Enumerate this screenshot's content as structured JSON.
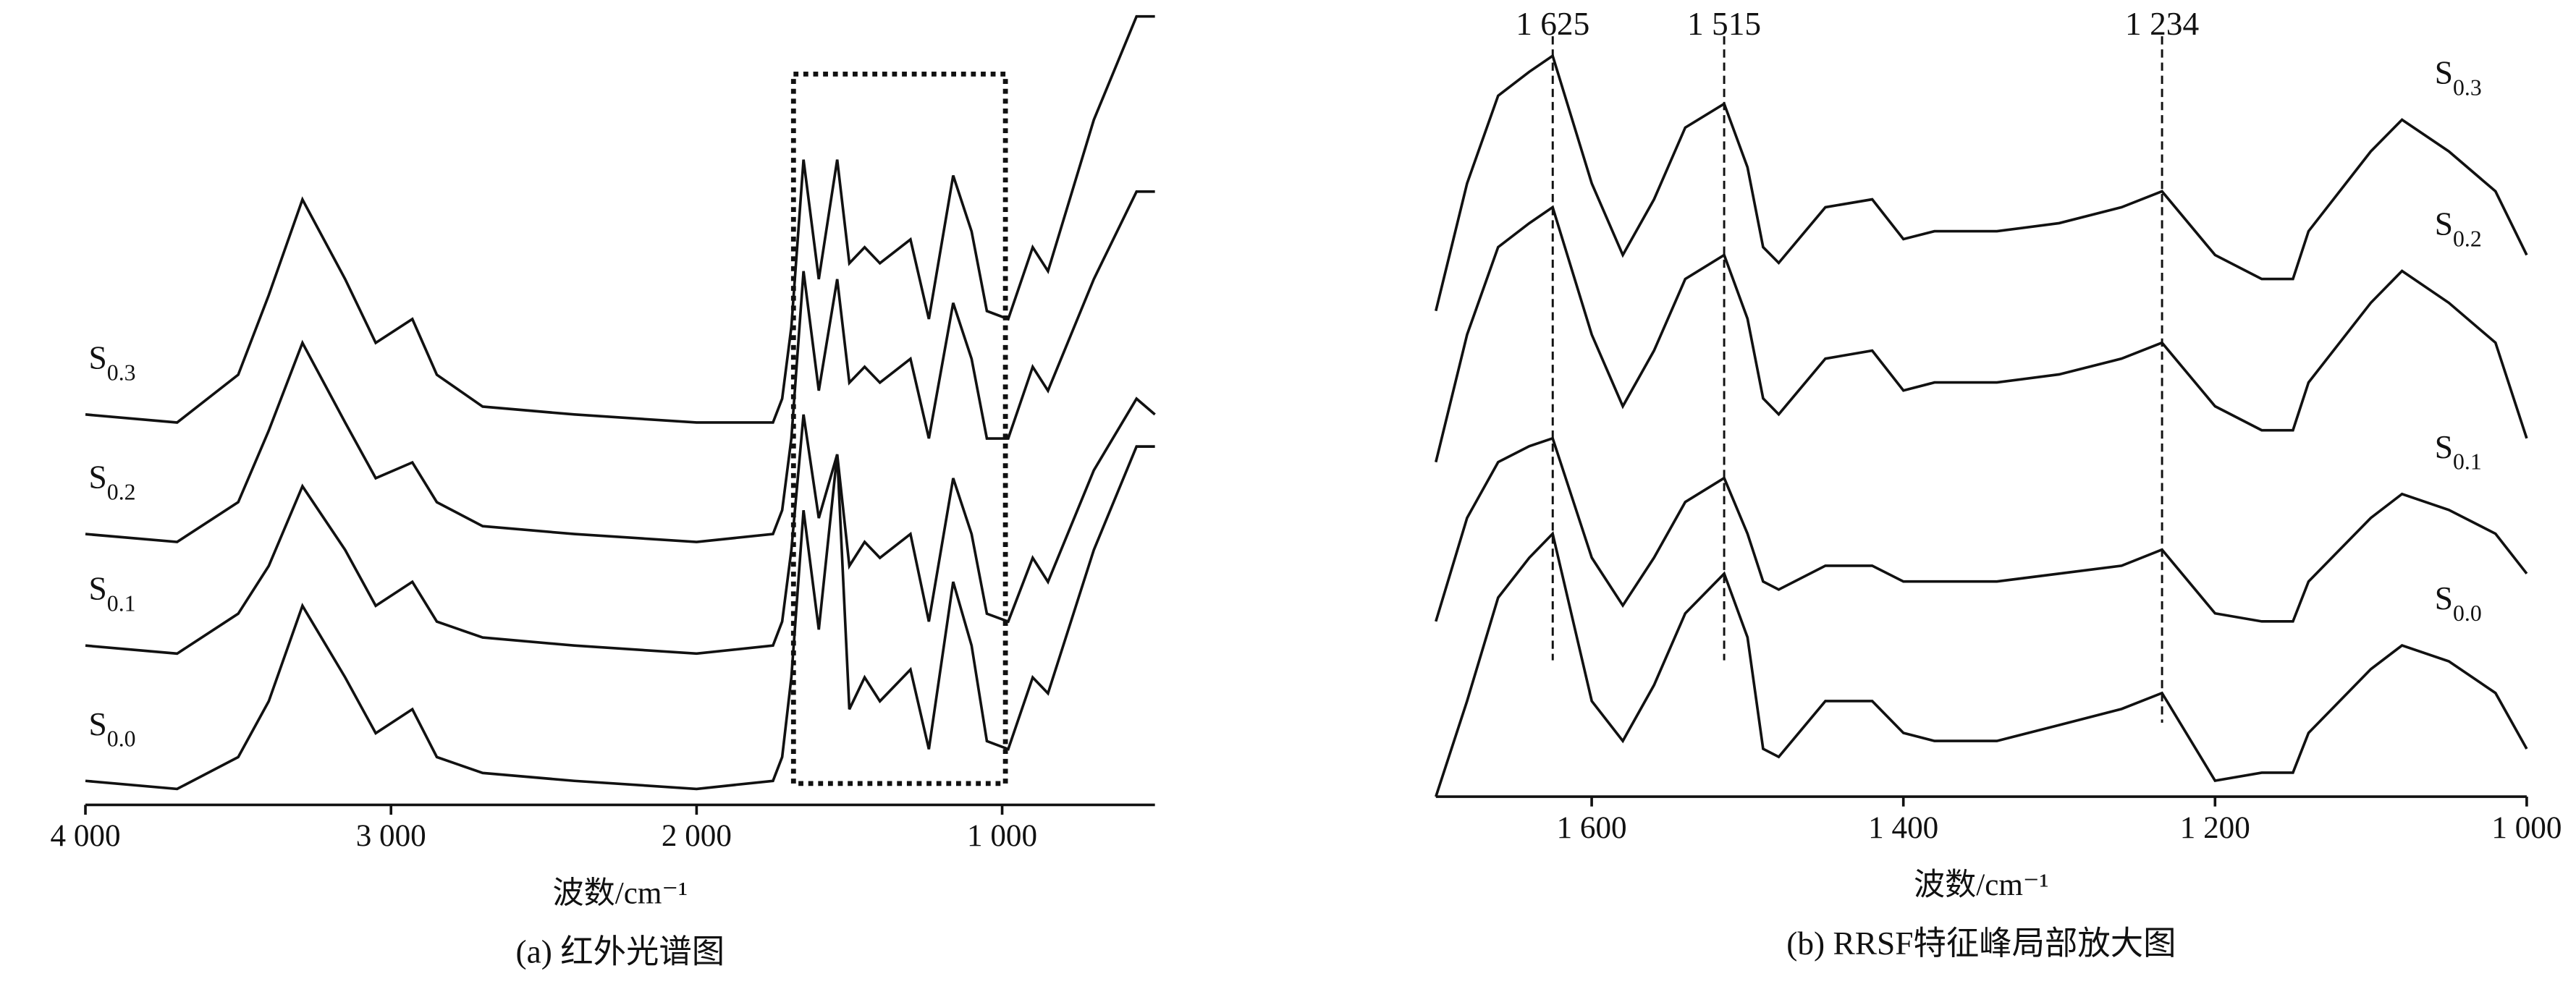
{
  "chart_data": [
    {
      "type": "line",
      "caption": "(a) 红外光谱图",
      "xlabel": "波数/cm⁻¹",
      "xlim": [
        4000,
        500
      ],
      "ylim": [
        0,
        100
      ],
      "xticks": [
        {
          "value": 4000,
          "label": "4 000"
        },
        {
          "value": 3000,
          "label": "3 000"
        },
        {
          "value": 2000,
          "label": "2 000"
        },
        {
          "value": 1000,
          "label": "1 000"
        }
      ],
      "x": [
        4000,
        3700,
        3500,
        3400,
        3290,
        3150,
        3050,
        2930,
        2850,
        2700,
        2400,
        2000,
        1750,
        1720,
        1690,
        1650,
        1600,
        1540,
        1500,
        1450,
        1400,
        1300,
        1240,
        1160,
        1100,
        1050,
        980,
        900,
        850,
        700,
        560,
        500
      ],
      "series": [
        {
          "name": "S0.3",
          "color": "#111111",
          "values": [
            49,
            48,
            54,
            64,
            76,
            66,
            58,
            61,
            54,
            50,
            49,
            48,
            48,
            51,
            60,
            81,
            66,
            81,
            68,
            70,
            68,
            71,
            61,
            79,
            72,
            62,
            61,
            70,
            67,
            86,
            99,
            99
          ]
        },
        {
          "name": "S0.2",
          "color": "#111111",
          "values": [
            34,
            33,
            38,
            47,
            58,
            48,
            41,
            43,
            38,
            35,
            34,
            33,
            34,
            37,
            46,
            67,
            52,
            66,
            53,
            55,
            53,
            56,
            46,
            63,
            56,
            46,
            46,
            55,
            52,
            66,
            77,
            77
          ]
        },
        {
          "name": "S0.1",
          "color": "#111111",
          "values": [
            20,
            19,
            24,
            30,
            40,
            32,
            25,
            28,
            23,
            21,
            20,
            19,
            20,
            23,
            32,
            49,
            36,
            44,
            30,
            33,
            31,
            34,
            23,
            41,
            34,
            24,
            23,
            31,
            28,
            42,
            51,
            49
          ]
        },
        {
          "name": "S0.0",
          "color": "#111111",
          "values": [
            3,
            2,
            6,
            13,
            25,
            16,
            9,
            12,
            6,
            4,
            3,
            2,
            3,
            6,
            16,
            37,
            22,
            44,
            12,
            16,
            13,
            17,
            7,
            28,
            20,
            8,
            7,
            16,
            14,
            32,
            45,
            45
          ]
        }
      ]
    },
    {
      "type": "line",
      "caption": "(b) RRSF特征峰局部放大图",
      "xlabel": "波数/cm⁻¹",
      "xlim": [
        1700,
        1000
      ],
      "ylim": [
        0,
        100
      ],
      "xticks": [
        {
          "value": 1600,
          "label": "1 600"
        },
        {
          "value": 1400,
          "label": "1 400"
        },
        {
          "value": 1200,
          "label": "1 200"
        },
        {
          "value": 1000,
          "label": "1 000"
        }
      ],
      "annotations": [
        {
          "x": 1625,
          "label": "1 625"
        },
        {
          "x": 1515,
          "label": "1 515"
        },
        {
          "x": 1234,
          "label": "1 234"
        }
      ],
      "x": [
        1700,
        1680,
        1660,
        1640,
        1625,
        1600,
        1580,
        1560,
        1540,
        1515,
        1500,
        1490,
        1480,
        1450,
        1420,
        1400,
        1380,
        1340,
        1300,
        1260,
        1234,
        1200,
        1170,
        1150,
        1140,
        1100,
        1080,
        1050,
        1020,
        1000
      ],
      "series": [
        {
          "name": "S0.3",
          "color": "#111111",
          "values": [
            61,
            77,
            88,
            91,
            93,
            77,
            68,
            75,
            84,
            87,
            79,
            69,
            67,
            74,
            75,
            70,
            71,
            71,
            72,
            74,
            76,
            68,
            65,
            65,
            71,
            81,
            85,
            81,
            76,
            68
          ]
        },
        {
          "name": "S0.2",
          "color": "#111111",
          "values": [
            42,
            58,
            69,
            72,
            74,
            58,
            49,
            56,
            65,
            68,
            60,
            50,
            48,
            55,
            56,
            51,
            52,
            52,
            53,
            55,
            57,
            49,
            46,
            46,
            52,
            62,
            66,
            62,
            57,
            45
          ]
        },
        {
          "name": "S0.1",
          "color": "#111111",
          "values": [
            22,
            35,
            42,
            44,
            45,
            30,
            24,
            30,
            37,
            40,
            33,
            27,
            26,
            29,
            29,
            27,
            27,
            27,
            28,
            29,
            31,
            23,
            22,
            22,
            27,
            35,
            38,
            36,
            33,
            28
          ]
        },
        {
          "name": "S0.0",
          "color": "#111111",
          "values": [
            0,
            12,
            25,
            30,
            33,
            12,
            7,
            14,
            23,
            28,
            20,
            6,
            5,
            12,
            12,
            8,
            7,
            7,
            9,
            11,
            13,
            2,
            3,
            3,
            8,
            16,
            19,
            17,
            13,
            6
          ]
        }
      ]
    }
  ]
}
